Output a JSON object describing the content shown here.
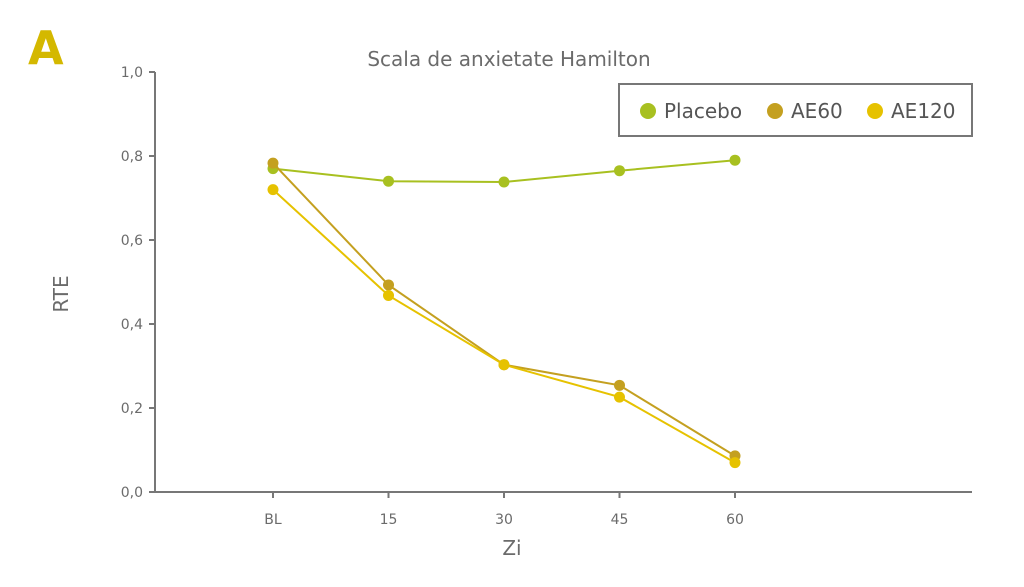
{
  "panel_label": "A",
  "chart_data": {
    "type": "line",
    "title": "Scala de anxietate Hamilton",
    "xlabel": "Zi",
    "ylabel": "RTE",
    "categories": [
      "BL",
      "15",
      "30",
      "45",
      "60"
    ],
    "ylim": [
      0,
      1
    ],
    "yticks": [
      "0,0",
      "0,2",
      "0,4",
      "0,6",
      "0,8",
      "1,0"
    ],
    "grid": false,
    "legend_position": "top-right",
    "series": [
      {
        "name": "Placebo",
        "color": "#a8c020",
        "values": [
          0.77,
          0.74,
          0.738,
          0.765,
          0.79
        ]
      },
      {
        "name": "AE60",
        "color": "#c4a020",
        "values": [
          0.783,
          0.493,
          0.303,
          0.254,
          0.086
        ]
      },
      {
        "name": "AE120",
        "color": "#e6c200",
        "values": [
          0.72,
          0.468,
          0.303,
          0.226,
          0.07
        ]
      }
    ]
  }
}
